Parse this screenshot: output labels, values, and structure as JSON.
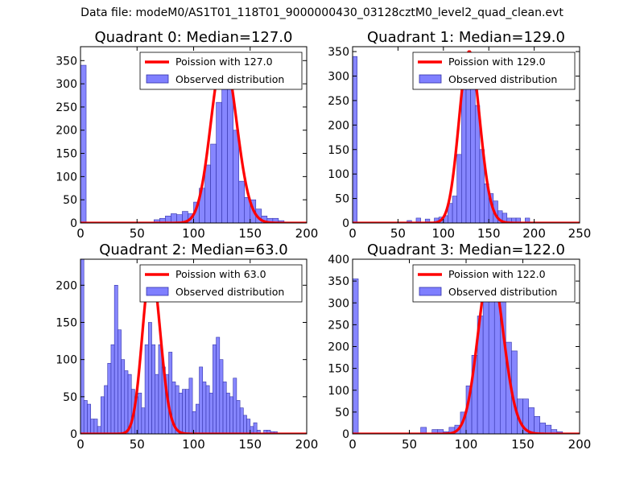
{
  "figure_title": "Data file: modeM0/AS1T01_118T01_9000000430_03128cztM0_level2_quad_clean.evt",
  "colors": {
    "poisson": "#ff0000",
    "hist_fill": "#7f7fff",
    "hist_edge": "#3333aa"
  },
  "chart_data": [
    {
      "type": "bar",
      "title": "Quadrant 0: Median=127.0",
      "xlim": [
        0,
        200
      ],
      "ylim": [
        0,
        380
      ],
      "xticks": [
        0,
        50,
        100,
        150,
        200
      ],
      "yticks": [
        0,
        50,
        100,
        150,
        200,
        250,
        300,
        350
      ],
      "bin_width": 5,
      "legend": {
        "line": "Poission with 127.0",
        "bars": "Observed distribution"
      },
      "hist": [
        [
          0,
          340
        ],
        [
          65,
          7
        ],
        [
          70,
          10
        ],
        [
          75,
          15
        ],
        [
          80,
          20
        ],
        [
          85,
          18
        ],
        [
          90,
          25
        ],
        [
          95,
          20
        ],
        [
          100,
          45
        ],
        [
          105,
          75
        ],
        [
          110,
          125
        ],
        [
          115,
          170
        ],
        [
          120,
          260
        ],
        [
          125,
          330
        ],
        [
          130,
          290
        ],
        [
          135,
          200
        ],
        [
          140,
          90
        ],
        [
          145,
          55
        ],
        [
          150,
          50
        ],
        [
          155,
          30
        ],
        [
          160,
          15
        ],
        [
          165,
          10
        ],
        [
          170,
          10
        ],
        [
          175,
          5
        ]
      ],
      "poisson_lambda": 127.0,
      "poisson_peak": 362
    },
    {
      "type": "bar",
      "title": "Quadrant 1: Median=129.0",
      "xlim": [
        0,
        250
      ],
      "ylim": [
        0,
        360
      ],
      "xticks": [
        0,
        50,
        100,
        150,
        200,
        250
      ],
      "yticks": [
        0,
        50,
        100,
        150,
        200,
        250,
        300,
        350
      ],
      "bin_width": 5,
      "legend": {
        "line": "Poission with 129.0",
        "bars": "Observed distribution"
      },
      "hist": [
        [
          0,
          340
        ],
        [
          60,
          5
        ],
        [
          70,
          10
        ],
        [
          80,
          8
        ],
        [
          90,
          10
        ],
        [
          95,
          12
        ],
        [
          100,
          15
        ],
        [
          105,
          40
        ],
        [
          110,
          55
        ],
        [
          115,
          140
        ],
        [
          120,
          280
        ],
        [
          125,
          320
        ],
        [
          130,
          300
        ],
        [
          135,
          240
        ],
        [
          140,
          150
        ],
        [
          145,
          80
        ],
        [
          150,
          60
        ],
        [
          155,
          45
        ],
        [
          160,
          25
        ],
        [
          165,
          20
        ],
        [
          170,
          10
        ],
        [
          175,
          10
        ],
        [
          180,
          10
        ],
        [
          190,
          10
        ]
      ],
      "poisson_lambda": 129.0,
      "poisson_peak": 350
    },
    {
      "type": "bar",
      "title": "Quadrant 2: Median=63.0",
      "xlim": [
        0,
        200
      ],
      "ylim": [
        0,
        235
      ],
      "xticks": [
        0,
        50,
        100,
        150,
        200
      ],
      "yticks": [
        0,
        50,
        100,
        150,
        200
      ],
      "bin_width": 3,
      "legend": {
        "line": "Poission with 63.0",
        "bars": "Observed distribution"
      },
      "hist": [
        [
          0,
          235
        ],
        [
          3,
          45
        ],
        [
          6,
          40
        ],
        [
          9,
          20
        ],
        [
          12,
          20
        ],
        [
          15,
          10
        ],
        [
          18,
          50
        ],
        [
          21,
          65
        ],
        [
          24,
          95
        ],
        [
          27,
          120
        ],
        [
          30,
          200
        ],
        [
          33,
          140
        ],
        [
          36,
          100
        ],
        [
          39,
          85
        ],
        [
          42,
          80
        ],
        [
          45,
          60
        ],
        [
          48,
          50
        ],
        [
          51,
          55
        ],
        [
          54,
          35
        ],
        [
          57,
          120
        ],
        [
          60,
          150
        ],
        [
          63,
          120
        ],
        [
          66,
          80
        ],
        [
          69,
          120
        ],
        [
          72,
          90
        ],
        [
          75,
          80
        ],
        [
          78,
          110
        ],
        [
          81,
          70
        ],
        [
          84,
          65
        ],
        [
          87,
          55
        ],
        [
          90,
          60
        ],
        [
          93,
          60
        ],
        [
          96,
          75
        ],
        [
          99,
          30
        ],
        [
          102,
          40
        ],
        [
          105,
          90
        ],
        [
          108,
          70
        ],
        [
          111,
          65
        ],
        [
          114,
          55
        ],
        [
          117,
          120
        ],
        [
          120,
          130
        ],
        [
          123,
          100
        ],
        [
          126,
          70
        ],
        [
          129,
          55
        ],
        [
          132,
          50
        ],
        [
          135,
          75
        ],
        [
          138,
          45
        ],
        [
          141,
          35
        ],
        [
          144,
          25
        ],
        [
          147,
          20
        ],
        [
          150,
          10
        ],
        [
          153,
          15
        ],
        [
          156,
          5
        ],
        [
          162,
          5
        ],
        [
          165,
          5
        ],
        [
          168,
          3
        ],
        [
          171,
          3
        ]
      ],
      "poisson_lambda": 63.0,
      "poisson_peak": 223
    },
    {
      "type": "bar",
      "title": "Quadrant 3: Median=122.0",
      "xlim": [
        0,
        200
      ],
      "ylim": [
        0,
        400
      ],
      "xticks": [
        0,
        50,
        100,
        150,
        200
      ],
      "yticks": [
        0,
        50,
        100,
        150,
        200,
        250,
        300,
        350,
        400
      ],
      "bin_width": 5,
      "legend": {
        "line": "Poission with 122.0",
        "bars": "Observed distribution"
      },
      "hist": [
        [
          0,
          355
        ],
        [
          60,
          15
        ],
        [
          70,
          10
        ],
        [
          75,
          10
        ],
        [
          80,
          5
        ],
        [
          85,
          15
        ],
        [
          90,
          20
        ],
        [
          95,
          50
        ],
        [
          100,
          110
        ],
        [
          105,
          180
        ],
        [
          110,
          270
        ],
        [
          115,
          330
        ],
        [
          120,
          360
        ],
        [
          125,
          380
        ],
        [
          130,
          310
        ],
        [
          135,
          210
        ],
        [
          140,
          190
        ],
        [
          145,
          80
        ],
        [
          150,
          80
        ],
        [
          155,
          60
        ],
        [
          160,
          40
        ],
        [
          165,
          25
        ],
        [
          170,
          20
        ],
        [
          175,
          10
        ],
        [
          180,
          5
        ]
      ],
      "poisson_lambda": 122.0,
      "poisson_peak": 383
    }
  ]
}
